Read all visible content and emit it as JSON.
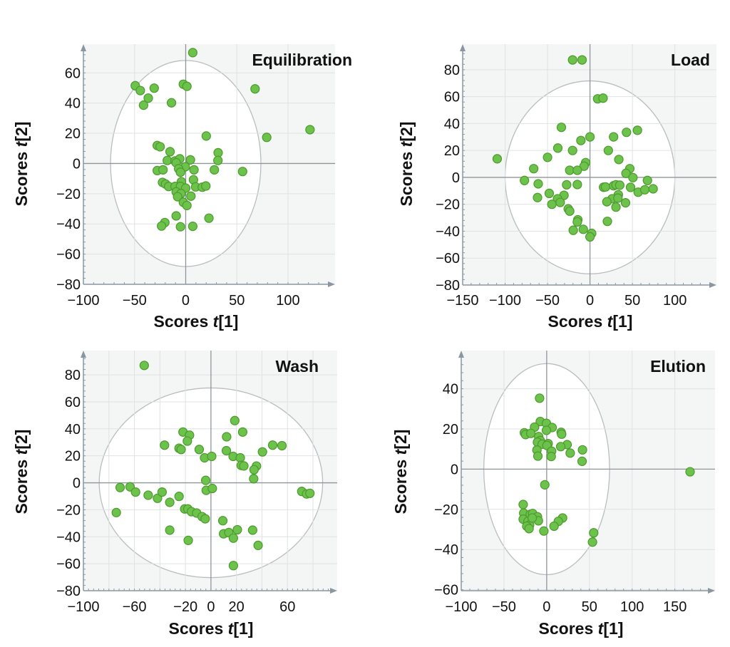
{
  "chart_data": [
    {
      "type": "scatter",
      "title": "Equilibration",
      "xlabel": "Scores t[1]",
      "ylabel": "Scores t[2]",
      "xlim": [
        -100,
        146
      ],
      "ylim": [
        -80,
        79
      ],
      "xticks": [
        -100,
        -50,
        0,
        50,
        100
      ],
      "yticks": [
        60,
        40,
        20,
        0,
        -20,
        -40,
        -60,
        -80
      ],
      "xgrid_step": 50,
      "ygrid_step": 20,
      "grid": true,
      "confidence_ellipse": {
        "rx": 73.5,
        "ry": 68.2
      },
      "points": [
        [
          6.9,
          73.4
        ],
        [
          -49.3,
          51.5
        ],
        [
          -44.4,
          48.3
        ],
        [
          -30.8,
          49.9
        ],
        [
          -36.6,
          43.3
        ],
        [
          -41.2,
          38.6
        ],
        [
          -13.9,
          40.2
        ],
        [
          -2.3,
          52.5
        ],
        [
          1.2,
          51.1
        ],
        [
          67.8,
          49.4
        ],
        [
          121.5,
          22.4
        ],
        [
          79.2,
          17.3
        ],
        [
          20.1,
          18.2
        ],
        [
          -27.8,
          11.9
        ],
        [
          -25,
          11.1
        ],
        [
          -15.3,
          7.8
        ],
        [
          31.7,
          7.1
        ],
        [
          31.5,
          2.0
        ],
        [
          -18,
          2
        ],
        [
          -10.4,
          1.7
        ],
        [
          -5.8,
          3.1
        ],
        [
          4.6,
          2.4
        ],
        [
          -9.3,
          0.5
        ],
        [
          -0.5,
          -2.2
        ],
        [
          -6.9,
          -3.5
        ],
        [
          -5.1,
          -5.8
        ],
        [
          -27.8,
          -4.7
        ],
        [
          -22.2,
          -4.2
        ],
        [
          8.1,
          -4.2
        ],
        [
          28,
          -4.2
        ],
        [
          55.6,
          -5.3
        ],
        [
          7.6,
          -10.8
        ],
        [
          -22.7,
          -12.5
        ],
        [
          -19.7,
          -13.6
        ],
        [
          -16.7,
          -15.2
        ],
        [
          -10.4,
          -15.2
        ],
        [
          -4.2,
          -12.1
        ],
        [
          -5.1,
          -15.2
        ],
        [
          0,
          -16.3
        ],
        [
          9.7,
          -15.5
        ],
        [
          16.2,
          -15.7
        ],
        [
          19.7,
          -14.9
        ],
        [
          -9.3,
          -18.8
        ],
        [
          -4.6,
          -19.9
        ],
        [
          -7.9,
          -22
        ],
        [
          5.1,
          -21.6
        ],
        [
          -2.3,
          -25.7
        ],
        [
          1.2,
          -27.8
        ],
        [
          -9.3,
          -34.7
        ],
        [
          22.7,
          -36.2
        ],
        [
          -20.4,
          -39.1
        ],
        [
          -23.6,
          -41.4
        ],
        [
          -5.1,
          -41.9
        ],
        [
          6.9,
          -41.6
        ]
      ]
    },
    {
      "type": "scatter",
      "title": "Load",
      "xlabel": "Scores t[1]",
      "ylabel": "Scores t[2]",
      "xlim": [
        -150,
        149
      ],
      "ylim": [
        -80,
        99
      ],
      "xticks": [
        -150,
        -100,
        -50,
        0,
        50,
        100
      ],
      "yticks": [
        80,
        60,
        40,
        20,
        0,
        -20,
        -40,
        -60,
        -80
      ],
      "xgrid_step": 50,
      "ygrid_step": 20,
      "grid": true,
      "confidence_ellipse": {
        "rx": 100,
        "ry": 71.7
      },
      "points": [
        [
          -20.5,
          87.3
        ],
        [
          -9.3,
          87.3
        ],
        [
          9,
          58.4
        ],
        [
          15.4,
          58.9
        ],
        [
          -33.7,
          37.2
        ],
        [
          43,
          33.5
        ],
        [
          55.9,
          35
        ],
        [
          0,
          30.1
        ],
        [
          27.8,
          30.1
        ],
        [
          -10.7,
          27.4
        ],
        [
          -37.9,
          21.8
        ],
        [
          -20.5,
          20
        ],
        [
          21.6,
          20
        ],
        [
          -109.3,
          13.8
        ],
        [
          -50,
          14.9
        ],
        [
          34,
          13.3
        ],
        [
          -66.3,
          6.5
        ],
        [
          -5.1,
          11
        ],
        [
          -7,
          8.3
        ],
        [
          -23.9,
          5.3
        ],
        [
          -14.9,
          5.3
        ],
        [
          46.9,
          6.5
        ],
        [
          42.4,
          3
        ],
        [
          50.6,
          -0.2
        ],
        [
          -77.2,
          -2.3
        ],
        [
          -61,
          -4.8
        ],
        [
          -27.5,
          -5.5
        ],
        [
          -14.9,
          -5.3
        ],
        [
          16,
          -7.3
        ],
        [
          18.3,
          -7.1
        ],
        [
          27.8,
          -6.2
        ],
        [
          30.6,
          -5.5
        ],
        [
          35.1,
          -5.8
        ],
        [
          67.7,
          -2.3
        ],
        [
          47.8,
          -7.4
        ],
        [
          56.7,
          -11
        ],
        [
          64.6,
          -9.2
        ],
        [
          74.4,
          -8.5
        ],
        [
          -48,
          -11.9
        ],
        [
          -30.6,
          -13.3
        ],
        [
          -38.2,
          -15.9
        ],
        [
          -61.8,
          -15
        ],
        [
          -44.9,
          -20
        ],
        [
          -35.1,
          -18.6
        ],
        [
          33.4,
          -12.9
        ],
        [
          26.1,
          -15.9
        ],
        [
          32.9,
          -15.4
        ],
        [
          19.9,
          -18.1
        ],
        [
          30.6,
          -22.1
        ],
        [
          41.9,
          -18.9
        ],
        [
          -25.6,
          -23.4
        ],
        [
          -23.9,
          -25.1
        ],
        [
          -14.3,
          -31.5
        ],
        [
          -14.9,
          -33.1
        ],
        [
          20.5,
          -32.7
        ],
        [
          -19.7,
          -39.3
        ],
        [
          -7.9,
          -38.6
        ],
        [
          2,
          -41.6
        ],
        [
          0,
          -44.2
        ]
      ]
    },
    {
      "type": "scatter",
      "title": "Wash",
      "xlabel": "Scores t[1]",
      "ylabel": "Scores t[2]",
      "xlim": [
        -100,
        99
      ],
      "ylim": [
        -80,
        98
      ],
      "xticks": [
        -100,
        -60,
        -20,
        0,
        20,
        60
      ],
      "yticks": [
        80,
        60,
        40,
        20,
        0,
        -20,
        -40,
        -60,
        -80
      ],
      "xgrid_step": 20,
      "ygrid_step": 20,
      "grid": true,
      "confidence_ellipse": {
        "rx": 87.6,
        "ry": 70.3
      },
      "points": [
        [
          -52.3,
          87
        ],
        [
          18.7,
          46.1
        ],
        [
          24.9,
          37.6
        ],
        [
          12.3,
          34.1
        ],
        [
          -21.9,
          37.6
        ],
        [
          -16.8,
          35.3
        ],
        [
          -18.5,
          30.9
        ],
        [
          -36.4,
          27.9
        ],
        [
          -25,
          25.6
        ],
        [
          -23.4,
          24.7
        ],
        [
          -9.2,
          24.7
        ],
        [
          12.1,
          23.8
        ],
        [
          -5,
          18.5
        ],
        [
          0.6,
          19.6
        ],
        [
          17.4,
          19.6
        ],
        [
          23,
          18.5
        ],
        [
          23.7,
          12.9
        ],
        [
          25.8,
          12.5
        ],
        [
          40.4,
          22.9
        ],
        [
          48.4,
          27.9
        ],
        [
          55.7,
          27.5
        ],
        [
          35.7,
          12.4
        ],
        [
          33.8,
          9.7
        ],
        [
          33.5,
          3
        ],
        [
          -4.1,
          1.8
        ],
        [
          -3.7,
          -5.6
        ],
        [
          1.1,
          -4.2
        ],
        [
          -71.2,
          -3.5
        ],
        [
          -63.4,
          -3
        ],
        [
          -59.1,
          -6.9
        ],
        [
          -49.2,
          -9.2
        ],
        [
          -41.9,
          -11.5
        ],
        [
          -38.3,
          -6.9
        ],
        [
          -32.3,
          -14.5
        ],
        [
          -25,
          -10.1
        ],
        [
          -20.6,
          -19.4
        ],
        [
          -18.1,
          -19.4
        ],
        [
          -15.3,
          -21.4
        ],
        [
          -11.2,
          -22.4
        ],
        [
          -6.9,
          -25.1
        ],
        [
          -4.5,
          -26.7
        ],
        [
          -74.2,
          -22.1
        ],
        [
          9.3,
          -28.1
        ],
        [
          -32.3,
          -35.1
        ],
        [
          -17.8,
          -42.7
        ],
        [
          9.9,
          -37.8
        ],
        [
          14,
          -36.9
        ],
        [
          20.7,
          -34.8
        ],
        [
          17.6,
          -41
        ],
        [
          32.7,
          -35.1
        ],
        [
          37,
          -46.4
        ],
        [
          17.6,
          -61.4
        ],
        [
          71.2,
          -6.4
        ],
        [
          75,
          -8.3
        ],
        [
          77.6,
          -7.8
        ]
      ]
    },
    {
      "type": "scatter",
      "title": "Elution",
      "xlabel": "Scores t[1]",
      "ylabel": "Scores t[2]",
      "xlim": [
        -100,
        197
      ],
      "ylim": [
        -60.5,
        59
      ],
      "xticks": [
        -100,
        -50,
        0,
        50,
        100,
        150
      ],
      "yticks": [
        40,
        20,
        0,
        -20,
        -40,
        -60
      ],
      "xgrid_step": 50,
      "ygrid_step": 20,
      "grid": true,
      "confidence_ellipse": {
        "rx": 73.6,
        "ry": 52.5
      },
      "points": [
        [
          -8.3,
          35.3
        ],
        [
          -7.5,
          23.7
        ],
        [
          -0.3,
          22.8
        ],
        [
          6.4,
          20.7
        ],
        [
          -14.2,
          20.9
        ],
        [
          -26.1,
          18.1
        ],
        [
          -24.7,
          17.2
        ],
        [
          -18.6,
          17.8
        ],
        [
          -0.3,
          19.3
        ],
        [
          16.9,
          18.3
        ],
        [
          17.5,
          17.4
        ],
        [
          -9.4,
          16.2
        ],
        [
          -7.5,
          14.2
        ],
        [
          -10.8,
          13.4
        ],
        [
          -5.3,
          12.4
        ],
        [
          1.7,
          12.7
        ],
        [
          0.3,
          11.8
        ],
        [
          23.9,
          12.2
        ],
        [
          16.4,
          11.2
        ],
        [
          -11.4,
          9.5
        ],
        [
          5.8,
          8.9
        ],
        [
          27.5,
          8
        ],
        [
          41.9,
          9.6
        ],
        [
          -10.3,
          6.5
        ],
        [
          5.3,
          6.3
        ],
        [
          41.4,
          3.9
        ],
        [
          167.8,
          -1.3
        ],
        [
          -2.2,
          -7.8
        ],
        [
          -27.5,
          -17.6
        ],
        [
          -26.9,
          -21.9
        ],
        [
          -27.5,
          -24.9
        ],
        [
          -19.2,
          -22.5
        ],
        [
          -16.4,
          -22.1
        ],
        [
          -10.8,
          -23.7
        ],
        [
          -9.7,
          -25.7
        ],
        [
          -21.9,
          -26
        ],
        [
          -20,
          -27.8
        ],
        [
          -23.3,
          -28.4
        ],
        [
          -20.6,
          -29.6
        ],
        [
          -16.9,
          -24.3
        ],
        [
          18.6,
          -24.3
        ],
        [
          13.6,
          -26
        ],
        [
          8.6,
          -28.4
        ],
        [
          -3.3,
          -30.8
        ],
        [
          55,
          -31.7
        ],
        [
          53.6,
          -36.3
        ]
      ]
    }
  ],
  "colors": {
    "point_fill": "#6cc24a",
    "point_stroke": "#4c9a2e",
    "plot_bg": "#f4f5f5",
    "ellipse_fill": "#ffffff",
    "ellipse_stroke": "#b9bdbf",
    "grid": "#dfe2e3",
    "zero_axis": "#8e9699",
    "axis": "#8a97a2"
  }
}
